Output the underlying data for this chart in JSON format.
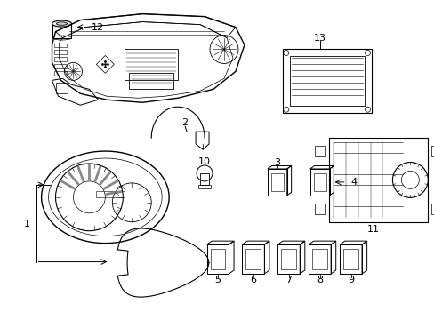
{
  "background_color": "#ffffff",
  "line_color": "#000000",
  "gray_color": "#cccccc",
  "figure_width": 4.89,
  "figure_height": 3.6,
  "dpi": 100
}
